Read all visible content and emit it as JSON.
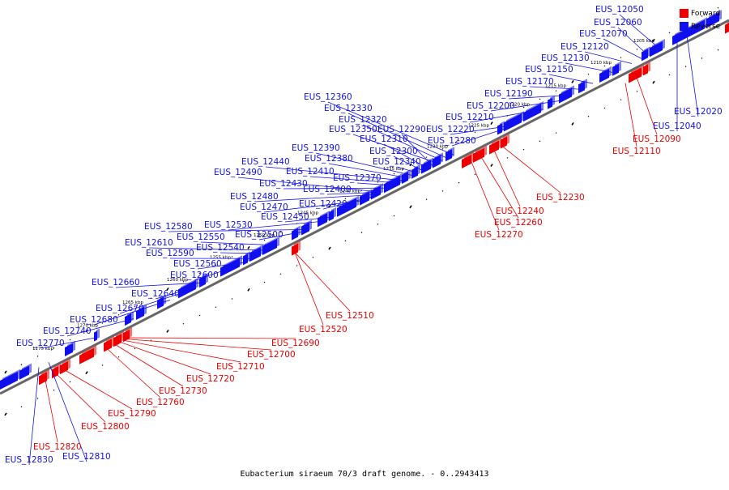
{
  "colors": {
    "forward": "#ee0000",
    "reverse": "#1010ee",
    "axis": "#666666",
    "background": "#ffffff"
  },
  "legend": [
    {
      "label": "Forward",
      "color": "#ee0000"
    },
    {
      "label": "Reverse",
      "color": "#1010ee"
    }
  ],
  "caption": "Eubacterium siraeum 70/3 draft genome. - 0..2943413",
  "ticks": [
    "1205 kbp",
    "1210 kbp",
    "1215 kbp",
    "1220 kbp",
    "1225 kbp",
    "1230 kbp",
    "1235 kbp",
    "1240 kbp",
    "1245 kbp",
    "1250 kbp",
    "1255 kbp",
    "1260 kbp",
    "1265 kbp",
    "1270 kbp",
    "1275 kbp"
  ],
  "reverse_labels": [
    "EUS_12050",
    "EUS_12060",
    "EUS_12070",
    "EUS_12120",
    "EUS_12130",
    "EUS_12150",
    "EUS_12170",
    "EUS_12190",
    "EUS_12200",
    "EUS_12210",
    "EUS_12220",
    "EUS_12280",
    "EUS_12360",
    "EUS_12330",
    "EUS_12320",
    "EUS_12350",
    "EUS_12290",
    "EUS_12310",
    "EUS_12300",
    "EUS_12340",
    "EUS_12390",
    "EUS_12380",
    "EUS_12440",
    "EUS_12410",
    "EUS_12490",
    "EUS_12370",
    "EUS_12430",
    "EUS_12400",
    "EUS_12480",
    "EUS_12420",
    "EUS_12470",
    "EUS_12450",
    "EUS_12530",
    "EUS_12580",
    "EUS_12500",
    "EUS_12550",
    "EUS_12610",
    "EUS_12540",
    "EUS_12590",
    "EUS_12560",
    "EUS_12600",
    "EUS_12660",
    "EUS_12640",
    "EUS_12670",
    "EUS_12680",
    "EUS_12740",
    "EUS_12770",
    "EUS_12020",
    "EUS_12040",
    "EUS_12830",
    "EUS_12810"
  ],
  "forward_labels": [
    "EUS_12090",
    "EUS_12110",
    "EUS_12230",
    "EUS_12240",
    "EUS_12260",
    "EUS_12270",
    "EUS_12510",
    "EUS_12520",
    "EUS_12690",
    "EUS_12700",
    "EUS_12710",
    "EUS_12720",
    "EUS_12730",
    "EUS_12760",
    "EUS_12790",
    "EUS_12800",
    "EUS_12820"
  ]
}
